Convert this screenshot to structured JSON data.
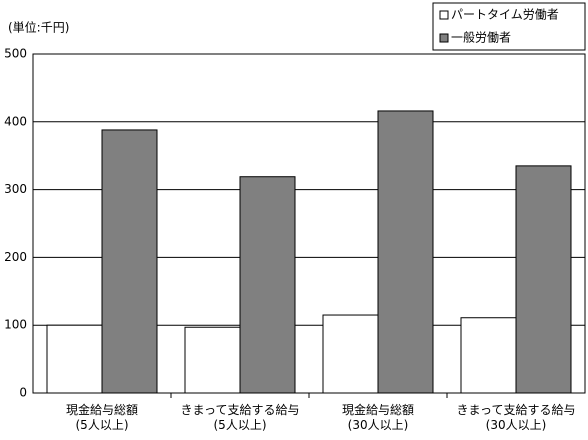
{
  "chart_data": {
    "type": "bar",
    "unit_label": "(単位:千円)",
    "categories": [
      "現金給与総額\n(5人以上)",
      "きまって支給する給与\n(5人以上)",
      "現金給与総額\n(30人以上)",
      "きまって支給する給与\n(30人以上)"
    ],
    "series": [
      {
        "name": "パートタイム労働者",
        "color": "#ffffff",
        "values": [
          100,
          97,
          115,
          111
        ]
      },
      {
        "name": "一般労働者",
        "color": "#808080",
        "values": [
          388,
          319,
          416,
          335
        ]
      }
    ],
    "ylim": [
      0,
      500
    ],
    "yticks": [
      0,
      100,
      200,
      300,
      400,
      500
    ],
    "grid": true,
    "legend": "top-right"
  }
}
